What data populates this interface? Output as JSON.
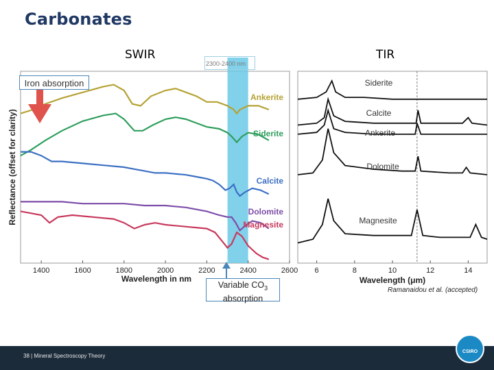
{
  "slide": {
    "title": "Carbonates",
    "swir_heading": "SWIR",
    "tir_heading": "TIR",
    "range_label": "2300-2400 nm",
    "iron_label": "Iron absorption",
    "co3_label_main": "Variable CO",
    "co3_subscript": "3",
    "co3_label_tail": "absorption",
    "citation": "Ramanaidou et al. (accepted)",
    "footer": "38  |  Mineral Spectroscopy Theory",
    "logo_text": "CSIRO"
  },
  "colors": {
    "title": "#1f3864",
    "highlight_band": "#6cc9e6",
    "arrow": "#e0524c",
    "ankerite": "#b5a233",
    "siderite": "#2e9e5c",
    "calcite": "#3b6fc4",
    "dolomite": "#7c4da8",
    "magnesite": "#c8385c"
  },
  "chart_data": [
    {
      "type": "line",
      "title": "SWIR",
      "xlabel": "Wavelength in nm",
      "ylabel": "Reflectance (offset for clarity)",
      "xlim": [
        1300,
        2600
      ],
      "xticks": [
        1400,
        1600,
        1800,
        2000,
        2200,
        2400,
        2600
      ],
      "highlight_range": [
        2300,
        2400
      ],
      "series": [
        {
          "name": "Ankerite",
          "points": [
            [
              1300,
              0.78
            ],
            [
              1360,
              0.8
            ],
            [
              1420,
              0.83
            ],
            [
              1500,
              0.86
            ],
            [
              1600,
              0.89
            ],
            [
              1700,
              0.92
            ],
            [
              1750,
              0.93
            ],
            [
              1800,
              0.9
            ],
            [
              1840,
              0.83
            ],
            [
              1880,
              0.82
            ],
            [
              1930,
              0.87
            ],
            [
              2000,
              0.9
            ],
            [
              2050,
              0.91
            ],
            [
              2100,
              0.89
            ],
            [
              2150,
              0.87
            ],
            [
              2200,
              0.84
            ],
            [
              2250,
              0.84
            ],
            [
              2300,
              0.82
            ],
            [
              2330,
              0.8
            ],
            [
              2345,
              0.78
            ],
            [
              2360,
              0.8
            ],
            [
              2400,
              0.82
            ],
            [
              2450,
              0.82
            ],
            [
              2500,
              0.8
            ]
          ]
        },
        {
          "name": "Siderite",
          "points": [
            [
              1300,
              0.56
            ],
            [
              1350,
              0.59
            ],
            [
              1420,
              0.64
            ],
            [
              1500,
              0.69
            ],
            [
              1600,
              0.74
            ],
            [
              1700,
              0.77
            ],
            [
              1760,
              0.78
            ],
            [
              1800,
              0.75
            ],
            [
              1850,
              0.69
            ],
            [
              1890,
              0.69
            ],
            [
              1940,
              0.72
            ],
            [
              2000,
              0.75
            ],
            [
              2050,
              0.76
            ],
            [
              2100,
              0.75
            ],
            [
              2150,
              0.73
            ],
            [
              2200,
              0.71
            ],
            [
              2260,
              0.7
            ],
            [
              2300,
              0.68
            ],
            [
              2320,
              0.66
            ],
            [
              2345,
              0.63
            ],
            [
              2370,
              0.66
            ],
            [
              2400,
              0.68
            ],
            [
              2450,
              0.67
            ],
            [
              2500,
              0.64
            ]
          ]
        },
        {
          "name": "Calcite",
          "points": [
            [
              1300,
              0.58
            ],
            [
              1350,
              0.58
            ],
            [
              1400,
              0.56
            ],
            [
              1450,
              0.53
            ],
            [
              1500,
              0.53
            ],
            [
              1600,
              0.52
            ],
            [
              1700,
              0.51
            ],
            [
              1800,
              0.5
            ],
            [
              1850,
              0.49
            ],
            [
              1900,
              0.48
            ],
            [
              1950,
              0.47
            ],
            [
              2000,
              0.47
            ],
            [
              2100,
              0.46
            ],
            [
              2150,
              0.45
            ],
            [
              2200,
              0.44
            ],
            [
              2230,
              0.43
            ],
            [
              2260,
              0.41
            ],
            [
              2290,
              0.38
            ],
            [
              2310,
              0.39
            ],
            [
              2330,
              0.41
            ],
            [
              2345,
              0.37
            ],
            [
              2360,
              0.35
            ],
            [
              2385,
              0.37
            ],
            [
              2420,
              0.39
            ],
            [
              2460,
              0.38
            ],
            [
              2500,
              0.36
            ]
          ]
        },
        {
          "name": "Dolomite",
          "points": [
            [
              1300,
              0.32
            ],
            [
              1400,
              0.32
            ],
            [
              1500,
              0.32
            ],
            [
              1600,
              0.31
            ],
            [
              1700,
              0.31
            ],
            [
              1800,
              0.31
            ],
            [
              1900,
              0.3
            ],
            [
              2000,
              0.3
            ],
            [
              2100,
              0.29
            ],
            [
              2200,
              0.27
            ],
            [
              2260,
              0.25
            ],
            [
              2300,
              0.24
            ],
            [
              2320,
              0.24
            ],
            [
              2340,
              0.21
            ],
            [
              2360,
              0.17
            ],
            [
              2380,
              0.19
            ],
            [
              2420,
              0.22
            ],
            [
              2460,
              0.21
            ],
            [
              2500,
              0.18
            ]
          ]
        },
        {
          "name": "Magnesite",
          "points": [
            [
              1300,
              0.27
            ],
            [
              1350,
              0.26
            ],
            [
              1400,
              0.25
            ],
            [
              1440,
              0.21
            ],
            [
              1480,
              0.24
            ],
            [
              1550,
              0.25
            ],
            [
              1650,
              0.24
            ],
            [
              1750,
              0.23
            ],
            [
              1800,
              0.21
            ],
            [
              1850,
              0.18
            ],
            [
              1900,
              0.2
            ],
            [
              1950,
              0.21
            ],
            [
              2000,
              0.2
            ],
            [
              2100,
              0.19
            ],
            [
              2200,
              0.18
            ],
            [
              2240,
              0.16
            ],
            [
              2270,
              0.12
            ],
            [
              2300,
              0.08
            ],
            [
              2320,
              0.1
            ],
            [
              2345,
              0.16
            ],
            [
              2370,
              0.14
            ],
            [
              2400,
              0.09
            ],
            [
              2440,
              0.05
            ],
            [
              2470,
              0.03
            ],
            [
              2500,
              0.02
            ]
          ]
        }
      ]
    },
    {
      "type": "line",
      "title": "TIR",
      "xlabel": "Wavelength (μm)",
      "xlim": [
        5,
        15
      ],
      "xticks": [
        6,
        8,
        10,
        12,
        14
      ],
      "reference_line": 11.3,
      "series": [
        {
          "name": "Siderite",
          "points": [
            [
              5.0,
              0.86
            ],
            [
              6.0,
              0.87
            ],
            [
              6.5,
              0.9
            ],
            [
              6.8,
              0.96
            ],
            [
              7.0,
              0.9
            ],
            [
              7.5,
              0.87
            ],
            [
              8.5,
              0.87
            ],
            [
              10,
              0.86
            ],
            [
              11.3,
              0.86
            ],
            [
              11.5,
              0.86
            ],
            [
              12.5,
              0.86
            ],
            [
              13,
              0.86
            ],
            [
              14,
              0.86
            ],
            [
              15,
              0.86
            ]
          ]
        },
        {
          "name": "Calcite",
          "points": [
            [
              5.0,
              0.72
            ],
            [
              6.0,
              0.73
            ],
            [
              6.4,
              0.76
            ],
            [
              6.6,
              0.86
            ],
            [
              6.9,
              0.77
            ],
            [
              7.5,
              0.74
            ],
            [
              9,
              0.73
            ],
            [
              10.5,
              0.73
            ],
            [
              11.25,
              0.73
            ],
            [
              11.35,
              0.8
            ],
            [
              11.5,
              0.73
            ],
            [
              13,
              0.73
            ],
            [
              13.7,
              0.73
            ],
            [
              14.0,
              0.76
            ],
            [
              14.2,
              0.73
            ],
            [
              15,
              0.72
            ]
          ]
        },
        {
          "name": "Ankerite",
          "points": [
            [
              5.0,
              0.67
            ],
            [
              6.0,
              0.68
            ],
            [
              6.4,
              0.72
            ],
            [
              6.6,
              0.8
            ],
            [
              6.9,
              0.7
            ],
            [
              7.5,
              0.68
            ],
            [
              9,
              0.67
            ],
            [
              10.5,
              0.67
            ],
            [
              11.2,
              0.67
            ],
            [
              11.3,
              0.73
            ],
            [
              11.5,
              0.67
            ],
            [
              13,
              0.67
            ],
            [
              14,
              0.67
            ],
            [
              15,
              0.67
            ]
          ]
        },
        {
          "name": "Dolomite",
          "points": [
            [
              5.0,
              0.45
            ],
            [
              5.8,
              0.46
            ],
            [
              6.3,
              0.53
            ],
            [
              6.6,
              0.7
            ],
            [
              6.9,
              0.57
            ],
            [
              7.5,
              0.5
            ],
            [
              9,
              0.48
            ],
            [
              10.5,
              0.47
            ],
            [
              11.2,
              0.47
            ],
            [
              11.35,
              0.55
            ],
            [
              11.5,
              0.47
            ],
            [
              13,
              0.46
            ],
            [
              13.7,
              0.46
            ],
            [
              13.9,
              0.49
            ],
            [
              14.1,
              0.46
            ],
            [
              15,
              0.45
            ]
          ]
        },
        {
          "name": "Magnesite",
          "points": [
            [
              5.0,
              0.08
            ],
            [
              5.8,
              0.1
            ],
            [
              6.3,
              0.18
            ],
            [
              6.6,
              0.32
            ],
            [
              6.9,
              0.2
            ],
            [
              7.5,
              0.13
            ],
            [
              9,
              0.12
            ],
            [
              10,
              0.12
            ],
            [
              11.0,
              0.12
            ],
            [
              11.3,
              0.26
            ],
            [
              11.6,
              0.12
            ],
            [
              12.5,
              0.11
            ],
            [
              13.5,
              0.11
            ],
            [
              14.1,
              0.11
            ],
            [
              14.4,
              0.18
            ],
            [
              14.7,
              0.11
            ],
            [
              15,
              0.1
            ]
          ]
        }
      ]
    }
  ]
}
